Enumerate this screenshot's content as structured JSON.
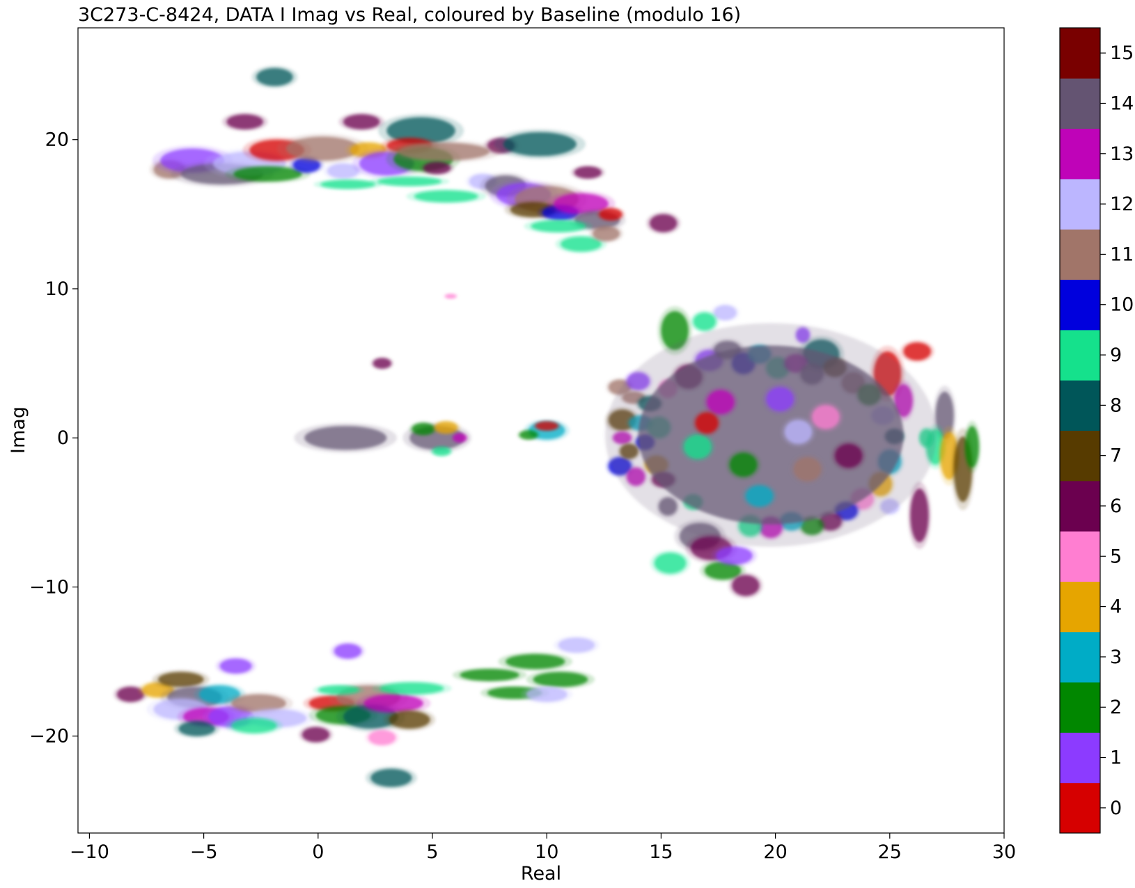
{
  "chart_data": {
    "type": "scatter",
    "title": "3C273-C-8424, DATA I Imag vs Real, coloured by Baseline (modulo 16)",
    "xlabel": "Real",
    "ylabel": "Imag",
    "xlim": [
      -10.5,
      30.0
    ],
    "ylim": [
      -26.5,
      27.5
    ],
    "xticks": [
      -10,
      -5,
      0,
      5,
      10,
      15,
      20,
      25,
      30
    ],
    "xtick_labels": [
      "−10",
      "−5",
      "0",
      "5",
      "10",
      "15",
      "20",
      "25",
      "30"
    ],
    "yticks": [
      -20,
      -10,
      0,
      10,
      20
    ],
    "ytick_labels": [
      "−20",
      "−10",
      "0",
      "10",
      "20"
    ],
    "grid": false,
    "colorbar": {
      "label": "",
      "ticks": [
        0,
        1,
        2,
        3,
        4,
        5,
        6,
        7,
        8,
        9,
        10,
        11,
        12,
        13,
        14,
        15
      ],
      "tick_labels": [
        "0",
        "1",
        "2",
        "3",
        "4",
        "5",
        "6",
        "7",
        "8",
        "9",
        "10",
        "11",
        "12",
        "13",
        "14",
        "15"
      ],
      "colors": [
        "#d60000",
        "#8c3bff",
        "#018700",
        "#00acc6",
        "#e6a500",
        "#ff7ed1",
        "#6b004f",
        "#573b00",
        "#005659",
        "#15e18c",
        "#0000dd",
        "#a17569",
        "#bcb6ff",
        "#bf03b8",
        "#645472",
        "#790000"
      ]
    },
    "clusters": [
      {
        "x": -1.9,
        "y": 24.2,
        "rx": 0.8,
        "ry": 0.6,
        "c": 8
      },
      {
        "x": -3.2,
        "y": 21.2,
        "rx": 0.8,
        "ry": 0.5,
        "c": 6
      },
      {
        "x": 1.9,
        "y": 21.2,
        "rx": 0.8,
        "ry": 0.5,
        "c": 6
      },
      {
        "x": 4.5,
        "y": 20.6,
        "rx": 1.5,
        "ry": 0.9,
        "c": 8
      },
      {
        "x": 8.0,
        "y": 19.6,
        "rx": 0.6,
        "ry": 0.5,
        "c": 6
      },
      {
        "x": 9.7,
        "y": 19.7,
        "rx": 1.6,
        "ry": 0.8,
        "c": 8
      },
      {
        "x": 11.8,
        "y": 17.8,
        "rx": 0.6,
        "ry": 0.4,
        "c": 6
      },
      {
        "x": 15.1,
        "y": 14.4,
        "rx": 0.6,
        "ry": 0.6,
        "c": 6
      },
      {
        "x": -6.5,
        "y": 18.0,
        "rx": 0.7,
        "ry": 0.6,
        "c": 11
      },
      {
        "x": -5.5,
        "y": 18.6,
        "rx": 1.4,
        "ry": 0.8,
        "c": 1
      },
      {
        "x": -4.2,
        "y": 17.7,
        "rx": 1.8,
        "ry": 0.7,
        "c": 14
      },
      {
        "x": -3.0,
        "y": 18.4,
        "rx": 1.6,
        "ry": 0.8,
        "c": 12
      },
      {
        "x": -1.8,
        "y": 19.3,
        "rx": 1.2,
        "ry": 0.7,
        "c": 0
      },
      {
        "x": -2.2,
        "y": 17.7,
        "rx": 1.5,
        "ry": 0.5,
        "c": 2
      },
      {
        "x": -0.5,
        "y": 18.3,
        "rx": 0.6,
        "ry": 0.5,
        "c": 10
      },
      {
        "x": 0.2,
        "y": 19.4,
        "rx": 1.6,
        "ry": 0.8,
        "c": 11
      },
      {
        "x": 1.1,
        "y": 17.9,
        "rx": 0.7,
        "ry": 0.5,
        "c": 12
      },
      {
        "x": 1.3,
        "y": 17.0,
        "rx": 1.2,
        "ry": 0.3,
        "c": 9
      },
      {
        "x": 2.2,
        "y": 19.3,
        "rx": 0.8,
        "ry": 0.5,
        "c": 4
      },
      {
        "x": 3.0,
        "y": 18.4,
        "rx": 1.2,
        "ry": 0.8,
        "c": 1
      },
      {
        "x": 4.0,
        "y": 19.6,
        "rx": 1.0,
        "ry": 0.5,
        "c": 0
      },
      {
        "x": 4.6,
        "y": 18.7,
        "rx": 1.3,
        "ry": 0.8,
        "c": 2
      },
      {
        "x": 5.5,
        "y": 19.2,
        "rx": 2.0,
        "ry": 0.6,
        "c": 11
      },
      {
        "x": 5.2,
        "y": 18.1,
        "rx": 0.6,
        "ry": 0.4,
        "c": 6
      },
      {
        "x": 4.0,
        "y": 17.2,
        "rx": 1.4,
        "ry": 0.3,
        "c": 9
      },
      {
        "x": 5.6,
        "y": 16.2,
        "rx": 1.4,
        "ry": 0.4,
        "c": 9
      },
      {
        "x": 7.2,
        "y": 17.2,
        "rx": 0.6,
        "ry": 0.5,
        "c": 12
      },
      {
        "x": 8.2,
        "y": 16.9,
        "rx": 0.9,
        "ry": 0.7,
        "c": 14
      },
      {
        "x": 9.0,
        "y": 16.3,
        "rx": 1.2,
        "ry": 0.8,
        "c": 1
      },
      {
        "x": 10.0,
        "y": 16.0,
        "rx": 1.4,
        "ry": 0.9,
        "c": 11
      },
      {
        "x": 9.4,
        "y": 15.3,
        "rx": 1.0,
        "ry": 0.5,
        "c": 7
      },
      {
        "x": 10.6,
        "y": 15.1,
        "rx": 0.8,
        "ry": 0.5,
        "c": 10
      },
      {
        "x": 11.5,
        "y": 15.7,
        "rx": 1.2,
        "ry": 0.7,
        "c": 13
      },
      {
        "x": 12.2,
        "y": 14.6,
        "rx": 1.0,
        "ry": 0.6,
        "c": 14
      },
      {
        "x": 12.8,
        "y": 15.0,
        "rx": 0.5,
        "ry": 0.4,
        "c": 0
      },
      {
        "x": 10.5,
        "y": 14.2,
        "rx": 1.2,
        "ry": 0.4,
        "c": 9
      },
      {
        "x": 11.5,
        "y": 13.0,
        "rx": 0.9,
        "ry": 0.5,
        "c": 9
      },
      {
        "x": 12.6,
        "y": 13.7,
        "rx": 0.6,
        "ry": 0.5,
        "c": 11
      },
      {
        "x": 2.8,
        "y": 5.0,
        "rx": 0.4,
        "ry": 0.35,
        "c": 6
      },
      {
        "x": 5.8,
        "y": 9.5,
        "rx": 0.25,
        "ry": 0.15,
        "c": 5
      },
      {
        "x": 1.2,
        "y": 0.0,
        "rx": 1.8,
        "ry": 0.8,
        "c": 14
      },
      {
        "x": 5.2,
        "y": 0.0,
        "rx": 1.2,
        "ry": 0.8,
        "c": 14
      },
      {
        "x": 4.6,
        "y": 0.6,
        "rx": 0.5,
        "ry": 0.4,
        "c": 2
      },
      {
        "x": 5.6,
        "y": 0.7,
        "rx": 0.5,
        "ry": 0.4,
        "c": 4
      },
      {
        "x": 5.4,
        "y": -0.9,
        "rx": 0.4,
        "ry": 0.3,
        "c": 9
      },
      {
        "x": 6.2,
        "y": 0.0,
        "rx": 0.3,
        "ry": 0.3,
        "c": 13
      },
      {
        "x": 10.0,
        "y": 0.5,
        "rx": 0.8,
        "ry": 0.6,
        "c": 3
      },
      {
        "x": 10.0,
        "y": 0.8,
        "rx": 0.5,
        "ry": 0.3,
        "c": 0
      },
      {
        "x": 9.2,
        "y": 0.2,
        "rx": 0.4,
        "ry": 0.3,
        "c": 2
      },
      {
        "x": 17.8,
        "y": 8.4,
        "rx": 0.5,
        "ry": 0.5,
        "c": 12
      },
      {
        "x": 15.6,
        "y": 7.2,
        "rx": 0.6,
        "ry": 1.3,
        "c": 2
      },
      {
        "x": 16.9,
        "y": 7.8,
        "rx": 0.5,
        "ry": 0.6,
        "c": 9
      },
      {
        "x": 21.2,
        "y": 6.9,
        "rx": 0.3,
        "ry": 0.5,
        "c": 1
      },
      {
        "x": 22.0,
        "y": 5.6,
        "rx": 0.8,
        "ry": 1.0,
        "c": 8
      },
      {
        "x": 26.2,
        "y": 5.8,
        "rx": 0.6,
        "ry": 0.6,
        "c": 0
      },
      {
        "x": 24.9,
        "y": 4.3,
        "rx": 0.6,
        "ry": 1.5,
        "c": 0
      },
      {
        "x": 25.6,
        "y": 2.5,
        "rx": 0.4,
        "ry": 1.1,
        "c": 13
      },
      {
        "x": 27.4,
        "y": 1.5,
        "rx": 0.4,
        "ry": 1.6,
        "c": 14
      },
      {
        "x": 13.2,
        "y": 3.4,
        "rx": 0.5,
        "ry": 0.5,
        "c": 11
      },
      {
        "x": 14.0,
        "y": 3.8,
        "rx": 0.5,
        "ry": 0.6,
        "c": 1
      },
      {
        "x": 13.8,
        "y": 2.7,
        "rx": 0.5,
        "ry": 0.4,
        "c": 11
      },
      {
        "x": 14.5,
        "y": 2.3,
        "rx": 0.5,
        "ry": 0.5,
        "c": 8
      },
      {
        "x": 15.3,
        "y": 3.3,
        "rx": 0.4,
        "ry": 0.6,
        "c": 5
      },
      {
        "x": 13.3,
        "y": 1.2,
        "rx": 0.6,
        "ry": 0.7,
        "c": 7
      },
      {
        "x": 14.1,
        "y": 1.0,
        "rx": 0.5,
        "ry": 0.5,
        "c": 3
      },
      {
        "x": 14.9,
        "y": 0.7,
        "rx": 0.5,
        "ry": 0.7,
        "c": 9
      },
      {
        "x": 13.3,
        "y": 0.0,
        "rx": 0.4,
        "ry": 0.4,
        "c": 13
      },
      {
        "x": 14.3,
        "y": -0.3,
        "rx": 0.4,
        "ry": 0.5,
        "c": 10
      },
      {
        "x": 13.2,
        "y": -1.9,
        "rx": 0.5,
        "ry": 0.6,
        "c": 10
      },
      {
        "x": 13.6,
        "y": -0.9,
        "rx": 0.4,
        "ry": 0.5,
        "c": 7
      },
      {
        "x": 13.9,
        "y": -2.6,
        "rx": 0.4,
        "ry": 0.6,
        "c": 13
      },
      {
        "x": 14.8,
        "y": -1.8,
        "rx": 0.5,
        "ry": 0.6,
        "c": 4
      },
      {
        "x": 15.1,
        "y": -2.8,
        "rx": 0.5,
        "ry": 0.5,
        "c": 6
      },
      {
        "x": 15.3,
        "y": -4.6,
        "rx": 0.4,
        "ry": 0.6,
        "c": 14
      },
      {
        "x": 16.4,
        "y": -4.3,
        "rx": 0.4,
        "ry": 0.5,
        "c": 9
      },
      {
        "x": 16.7,
        "y": -6.6,
        "rx": 0.9,
        "ry": 0.9,
        "c": 14
      },
      {
        "x": 15.4,
        "y": -8.4,
        "rx": 0.7,
        "ry": 0.7,
        "c": 9
      },
      {
        "x": 17.2,
        "y": -7.4,
        "rx": 0.9,
        "ry": 0.8,
        "c": 6
      },
      {
        "x": 17.7,
        "y": -8.9,
        "rx": 0.8,
        "ry": 0.6,
        "c": 2
      },
      {
        "x": 18.2,
        "y": -7.9,
        "rx": 0.8,
        "ry": 0.6,
        "c": 1
      },
      {
        "x": 18.7,
        "y": -9.9,
        "rx": 0.6,
        "ry": 0.7,
        "c": 6
      },
      {
        "x": 16.2,
        "y": 4.1,
        "rx": 0.6,
        "ry": 0.8,
        "c": 6
      },
      {
        "x": 17.1,
        "y": 5.2,
        "rx": 0.6,
        "ry": 0.7,
        "c": 1
      },
      {
        "x": 17.9,
        "y": 5.9,
        "rx": 0.6,
        "ry": 0.6,
        "c": 14
      },
      {
        "x": 18.6,
        "y": 5.0,
        "rx": 0.5,
        "ry": 0.7,
        "c": 10
      },
      {
        "x": 19.3,
        "y": 5.6,
        "rx": 0.5,
        "ry": 0.6,
        "c": 3
      },
      {
        "x": 20.1,
        "y": 4.7,
        "rx": 0.5,
        "ry": 0.7,
        "c": 9
      },
      {
        "x": 20.9,
        "y": 5.0,
        "rx": 0.5,
        "ry": 0.6,
        "c": 13
      },
      {
        "x": 21.6,
        "y": 4.3,
        "rx": 0.5,
        "ry": 0.7,
        "c": 14
      },
      {
        "x": 22.6,
        "y": 4.7,
        "rx": 0.5,
        "ry": 0.6,
        "c": 7
      },
      {
        "x": 23.4,
        "y": 3.7,
        "rx": 0.5,
        "ry": 0.7,
        "c": 11
      },
      {
        "x": 24.1,
        "y": 2.9,
        "rx": 0.5,
        "ry": 0.7,
        "c": 2
      },
      {
        "x": 24.7,
        "y": 1.5,
        "rx": 0.5,
        "ry": 0.6,
        "c": 12
      },
      {
        "x": 25.2,
        "y": 0.1,
        "rx": 0.4,
        "ry": 0.5,
        "c": 8
      },
      {
        "x": 25.0,
        "y": -1.6,
        "rx": 0.5,
        "ry": 0.8,
        "c": 3
      },
      {
        "x": 24.6,
        "y": -3.1,
        "rx": 0.5,
        "ry": 0.8,
        "c": 4
      },
      {
        "x": 25.0,
        "y": -4.6,
        "rx": 0.4,
        "ry": 0.5,
        "c": 12
      },
      {
        "x": 23.8,
        "y": -4.1,
        "rx": 0.5,
        "ry": 0.7,
        "c": 5
      },
      {
        "x": 23.1,
        "y": -4.9,
        "rx": 0.5,
        "ry": 0.6,
        "c": 10
      },
      {
        "x": 22.4,
        "y": -5.6,
        "rx": 0.5,
        "ry": 0.6,
        "c": 6
      },
      {
        "x": 21.6,
        "y": -5.9,
        "rx": 0.5,
        "ry": 0.6,
        "c": 2
      },
      {
        "x": 20.7,
        "y": -5.6,
        "rx": 0.5,
        "ry": 0.6,
        "c": 3
      },
      {
        "x": 19.8,
        "y": -6.0,
        "rx": 0.5,
        "ry": 0.7,
        "c": 13
      },
      {
        "x": 18.9,
        "y": -5.9,
        "rx": 0.5,
        "ry": 0.7,
        "c": 9
      },
      {
        "x": 27.0,
        "y": -0.6,
        "rx": 0.4,
        "ry": 1.2,
        "c": 9
      },
      {
        "x": 27.6,
        "y": -1.2,
        "rx": 0.4,
        "ry": 1.6,
        "c": 4
      },
      {
        "x": 28.2,
        "y": -2.1,
        "rx": 0.4,
        "ry": 2.2,
        "c": 7
      },
      {
        "x": 28.6,
        "y": -0.6,
        "rx": 0.3,
        "ry": 1.4,
        "c": 2
      },
      {
        "x": 26.3,
        "y": -5.2,
        "rx": 0.4,
        "ry": 1.8,
        "c": 6
      },
      {
        "x": 26.6,
        "y": 0.0,
        "rx": 0.3,
        "ry": 0.6,
        "c": 9
      },
      {
        "x": 19.8,
        "y": 0.2,
        "rx": 5.8,
        "ry": 6.0,
        "c": 14
      },
      {
        "x": 17.6,
        "y": 2.4,
        "rx": 0.6,
        "ry": 0.8,
        "c": 13
      },
      {
        "x": 18.6,
        "y": -1.8,
        "rx": 0.6,
        "ry": 0.8,
        "c": 2
      },
      {
        "x": 20.2,
        "y": 2.6,
        "rx": 0.6,
        "ry": 0.8,
        "c": 1
      },
      {
        "x": 21.4,
        "y": -2.1,
        "rx": 0.6,
        "ry": 0.8,
        "c": 11
      },
      {
        "x": 22.2,
        "y": 1.4,
        "rx": 0.6,
        "ry": 0.8,
        "c": 5
      },
      {
        "x": 16.6,
        "y": -0.6,
        "rx": 0.6,
        "ry": 0.8,
        "c": 9
      },
      {
        "x": 19.3,
        "y": -3.9,
        "rx": 0.6,
        "ry": 0.7,
        "c": 3
      },
      {
        "x": 23.2,
        "y": -1.2,
        "rx": 0.6,
        "ry": 0.8,
        "c": 6
      },
      {
        "x": 17.0,
        "y": 1.0,
        "rx": 0.5,
        "ry": 0.7,
        "c": 0
      },
      {
        "x": 21.0,
        "y": 0.4,
        "rx": 0.6,
        "ry": 0.8,
        "c": 12
      },
      {
        "x": 3.2,
        "y": -22.8,
        "rx": 0.9,
        "ry": 0.6,
        "c": 8
      },
      {
        "x": -3.6,
        "y": -15.3,
        "rx": 0.7,
        "ry": 0.5,
        "c": 1
      },
      {
        "x": 1.3,
        "y": -14.3,
        "rx": 0.6,
        "ry": 0.5,
        "c": 1
      },
      {
        "x": -8.2,
        "y": -17.2,
        "rx": 0.6,
        "ry": 0.5,
        "c": 6
      },
      {
        "x": -7.0,
        "y": -16.9,
        "rx": 0.7,
        "ry": 0.5,
        "c": 4
      },
      {
        "x": -6.0,
        "y": -16.2,
        "rx": 1.0,
        "ry": 0.5,
        "c": 7
      },
      {
        "x": -5.4,
        "y": -17.4,
        "rx": 1.2,
        "ry": 0.7,
        "c": 14
      },
      {
        "x": -6.0,
        "y": -18.2,
        "rx": 1.2,
        "ry": 0.7,
        "c": 12
      },
      {
        "x": -4.3,
        "y": -17.2,
        "rx": 0.9,
        "ry": 0.6,
        "c": 3
      },
      {
        "x": -4.9,
        "y": -18.7,
        "rx": 1.0,
        "ry": 0.6,
        "c": 13
      },
      {
        "x": -5.3,
        "y": -19.5,
        "rx": 0.8,
        "ry": 0.5,
        "c": 8
      },
      {
        "x": -3.8,
        "y": -18.7,
        "rx": 1.0,
        "ry": 0.7,
        "c": 1
      },
      {
        "x": -2.6,
        "y": -17.8,
        "rx": 1.2,
        "ry": 0.6,
        "c": 11
      },
      {
        "x": -1.8,
        "y": -18.8,
        "rx": 1.3,
        "ry": 0.6,
        "c": 12
      },
      {
        "x": -2.8,
        "y": -19.3,
        "rx": 1.0,
        "ry": 0.5,
        "c": 9
      },
      {
        "x": -0.1,
        "y": -19.9,
        "rx": 0.6,
        "ry": 0.5,
        "c": 6
      },
      {
        "x": 0.6,
        "y": -17.8,
        "rx": 1.0,
        "ry": 0.5,
        "c": 0
      },
      {
        "x": 2.2,
        "y": -17.4,
        "rx": 1.4,
        "ry": 0.8,
        "c": 11
      },
      {
        "x": 1.1,
        "y": -18.6,
        "rx": 1.2,
        "ry": 0.6,
        "c": 2
      },
      {
        "x": 2.3,
        "y": -18.7,
        "rx": 1.2,
        "ry": 0.8,
        "c": 8
      },
      {
        "x": 3.3,
        "y": -17.8,
        "rx": 1.3,
        "ry": 0.6,
        "c": 13
      },
      {
        "x": 4.0,
        "y": -18.9,
        "rx": 0.9,
        "ry": 0.6,
        "c": 7
      },
      {
        "x": 2.8,
        "y": -20.1,
        "rx": 0.6,
        "ry": 0.5,
        "c": 5
      },
      {
        "x": 4.1,
        "y": -16.8,
        "rx": 1.4,
        "ry": 0.4,
        "c": 9
      },
      {
        "x": 0.9,
        "y": -16.9,
        "rx": 0.9,
        "ry": 0.3,
        "c": 9
      },
      {
        "x": 7.5,
        "y": -15.9,
        "rx": 1.3,
        "ry": 0.4,
        "c": 2
      },
      {
        "x": 9.5,
        "y": -15.0,
        "rx": 1.3,
        "ry": 0.5,
        "c": 2
      },
      {
        "x": 11.3,
        "y": -13.9,
        "rx": 0.8,
        "ry": 0.5,
        "c": 12
      },
      {
        "x": 8.6,
        "y": -17.1,
        "rx": 1.2,
        "ry": 0.4,
        "c": 2
      },
      {
        "x": 10.6,
        "y": -16.2,
        "rx": 1.2,
        "ry": 0.5,
        "c": 2
      },
      {
        "x": 10.0,
        "y": -17.2,
        "rx": 0.9,
        "ry": 0.5,
        "c": 12
      }
    ]
  }
}
